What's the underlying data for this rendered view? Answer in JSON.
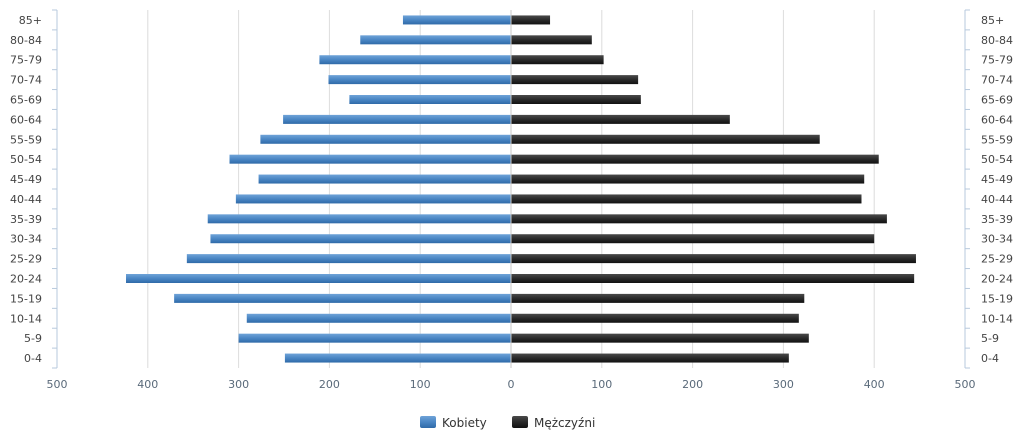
{
  "chart_data": {
    "type": "bar",
    "orientation": "horizontal-pyramid",
    "categories": [
      "0-4",
      "5-9",
      "10-14",
      "15-19",
      "20-24",
      "25-29",
      "30-34",
      "35-39",
      "40-44",
      "45-49",
      "50-54",
      "55-59",
      "60-64",
      "65-69",
      "70-74",
      "75-79",
      "80-84",
      "85+"
    ],
    "series": [
      {
        "name": "Kobiety",
        "side": "left",
        "color": "#4a86c4",
        "values": [
          249,
          300,
          291,
          371,
          424,
          357,
          331,
          334,
          303,
          278,
          310,
          276,
          251,
          178,
          201,
          211,
          166,
          119
        ]
      },
      {
        "name": "Mężczyźni",
        "side": "right",
        "color": "#2a2a2a",
        "values": [
          306,
          328,
          317,
          323,
          444,
          446,
          400,
          414,
          386,
          389,
          405,
          340,
          241,
          143,
          140,
          102,
          89,
          43
        ]
      }
    ],
    "xlim": [
      -500,
      500
    ],
    "x_tick_labels": [
      "500",
      "400",
      "300",
      "200",
      "100",
      "0",
      "100",
      "200",
      "300",
      "400",
      "500"
    ],
    "grid": true,
    "legend_position": "bottom-center"
  }
}
